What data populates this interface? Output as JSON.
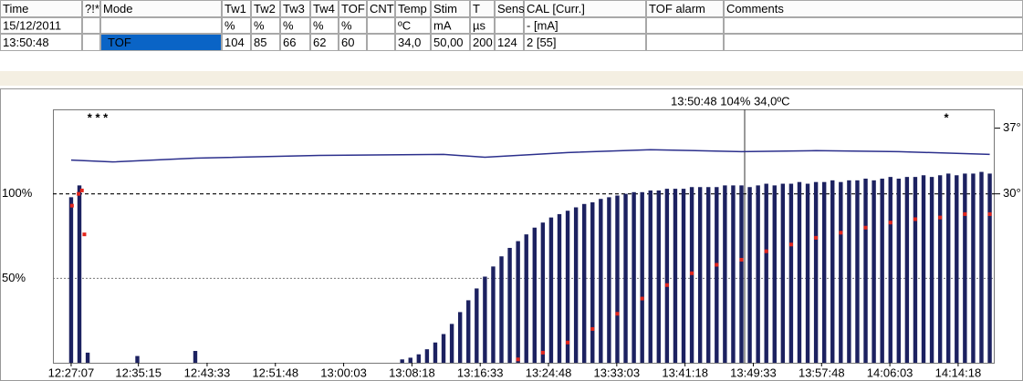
{
  "table": {
    "columns": [
      "Time",
      "?!*",
      "Mode",
      "Tw1",
      "Tw2",
      "Tw3",
      "Tw4",
      "TOF",
      "CNT",
      "Temp",
      "Stim",
      "T",
      "Sens.",
      "CAL [Curr.]",
      "TOF alarm",
      "Comments"
    ],
    "rows": [
      [
        "15/12/2011",
        null,
        null,
        "%",
        "%",
        "%",
        "%",
        "%",
        null,
        "ºC",
        "mA",
        "µs",
        null,
        "-  [mA]",
        null,
        null
      ],
      [
        "13:50:48",
        null,
        "TOF",
        104,
        85,
        66,
        62,
        60,
        null,
        "34,0",
        "50,00",
        200,
        124,
        "2  [55]",
        null,
        null
      ]
    ]
  },
  "chart_data": {
    "type": "bar",
    "cursor_label": "13:50:48 104% 34,0ºC",
    "annotations": [
      "* * *",
      "*"
    ],
    "xlim": [
      -2.2,
      111.6
    ],
    "xticks": [
      {
        "value": 0,
        "label": "12:27:07"
      },
      {
        "value": 8.13,
        "label": "12:35:15"
      },
      {
        "value": 16.43,
        "label": "12:43:33"
      },
      {
        "value": 24.68,
        "label": "12:51:48"
      },
      {
        "value": 32.93,
        "label": "13:00:03"
      },
      {
        "value": 41.18,
        "label": "13:08:18"
      },
      {
        "value": 49.43,
        "label": "13:16:33"
      },
      {
        "value": 57.68,
        "label": "13:24:48"
      },
      {
        "value": 65.93,
        "label": "13:33:03"
      },
      {
        "value": 74.18,
        "label": "13:41:18"
      },
      {
        "value": 82.43,
        "label": "13:49:33"
      },
      {
        "value": 90.68,
        "label": "13:57:48"
      },
      {
        "value": 98.93,
        "label": "14:06:03"
      },
      {
        "value": 107.18,
        "label": "14:14:18"
      }
    ],
    "ylim": [
      0,
      150
    ],
    "yticks": [
      {
        "value": 50,
        "label": "50%"
      },
      {
        "value": 100,
        "label": "100%"
      }
    ],
    "y2lim": [
      12,
      39
    ],
    "y2ticks": [
      {
        "value": 30,
        "label": "30°"
      },
      {
        "value": 37,
        "label": "37°"
      }
    ],
    "x": [
      0,
      1,
      2,
      3,
      4,
      5,
      6,
      7,
      8,
      9,
      10,
      11,
      12,
      13,
      14,
      15,
      16,
      17,
      18,
      19,
      20,
      21,
      22,
      23,
      24,
      25,
      26,
      27,
      28,
      29,
      30,
      31,
      32,
      33,
      34,
      35,
      36,
      37,
      38,
      39,
      40,
      41,
      42,
      43,
      44,
      45,
      46,
      47,
      48,
      49,
      50,
      51,
      52,
      53,
      54,
      55,
      56,
      57,
      58,
      59,
      60,
      61,
      62,
      63,
      64,
      65,
      66,
      67,
      68,
      69,
      70,
      71,
      72,
      73,
      74,
      75,
      76,
      77,
      78,
      79,
      80,
      81,
      82,
      83,
      84,
      85,
      86,
      87,
      88,
      89,
      90,
      91,
      92,
      93,
      94,
      95,
      96,
      97,
      98,
      99,
      100,
      101,
      102,
      103,
      104,
      105,
      106,
      107,
      108,
      109,
      110,
      111
    ],
    "values": [
      98,
      105,
      6,
      0,
      0,
      0,
      0,
      0,
      4,
      0,
      0,
      0,
      0,
      0,
      0,
      7,
      0,
      0,
      0,
      0,
      0,
      0,
      0,
      0,
      0,
      0,
      0,
      0,
      0,
      0,
      0,
      0,
      0,
      0,
      0,
      0,
      0,
      0,
      0,
      0,
      2,
      3,
      5,
      8,
      12,
      17,
      23,
      30,
      37,
      44,
      51,
      57,
      63,
      68,
      72,
      76,
      80,
      83,
      86,
      88,
      90,
      92,
      94,
      95,
      97,
      98,
      99,
      100,
      101,
      101,
      102,
      102,
      103,
      103,
      103,
      104,
      104,
      104,
      104,
      105,
      105,
      105,
      104,
      105,
      106,
      105,
      106,
      106,
      107,
      106,
      107,
      107,
      108,
      107,
      108,
      108,
      109,
      108,
      109,
      110,
      109,
      110,
      110,
      111,
      110,
      111,
      112,
      111,
      112,
      112,
      113,
      112
    ],
    "color": "#1c2160",
    "series": [
      {
        "name": "TOF",
        "color": "#e3261c",
        "type": "scatter",
        "x": [
          0.1,
          0.9,
          1.3,
          1.6,
          54,
          57,
          60,
          63,
          66,
          69,
          72,
          75,
          78,
          81,
          84,
          87,
          90,
          93,
          96,
          99,
          102,
          105,
          108,
          111
        ],
        "values": [
          93,
          100,
          102,
          76,
          2,
          6,
          12,
          20,
          29,
          38,
          46,
          53,
          58,
          61,
          66,
          70,
          74,
          77,
          80,
          83,
          85,
          86,
          88,
          88
        ]
      },
      {
        "name": "Temp",
        "color": "#2b2f8c",
        "type": "line",
        "axis": "y2",
        "x": [
          0,
          5,
          15,
          30,
          45,
          50,
          60,
          70,
          81,
          90,
          100,
          111
        ],
        "values": [
          33.6,
          33.4,
          33.8,
          34.1,
          34.2,
          33.9,
          34.4,
          34.7,
          34.5,
          34.6,
          34.5,
          34.2
        ]
      }
    ]
  }
}
